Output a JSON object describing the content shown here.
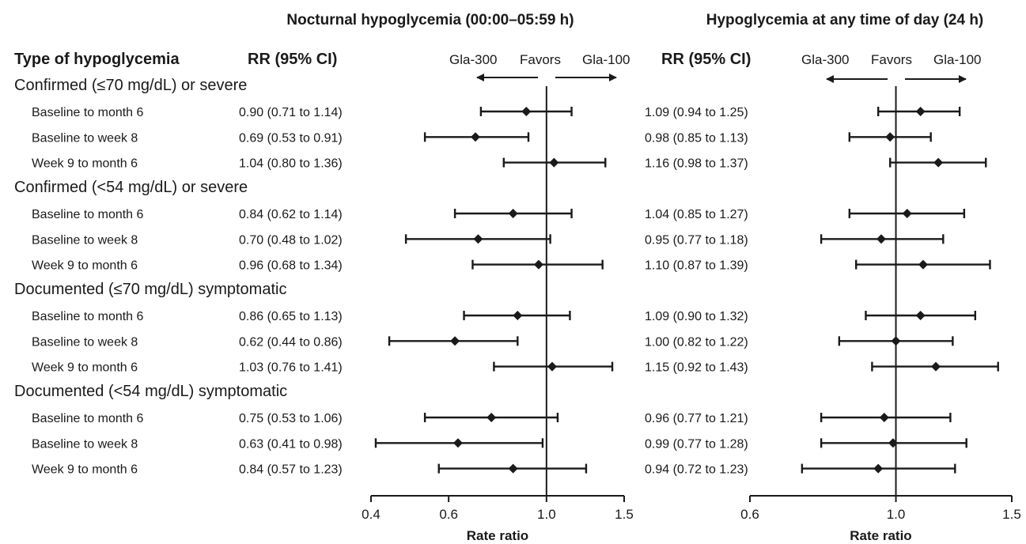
{
  "header": {
    "type_label": "Type of hypoglycemia",
    "rr_label": "RR (95% CI)"
  },
  "chart_data": [
    {
      "type": "forest",
      "title": "Nocturnal hypoglycemia (00:00–05:59 h)",
      "xlabel": "Rate ratio",
      "scale": "log",
      "xlim": [
        0.4,
        1.5
      ],
      "ticks": [
        0.4,
        0.6,
        1.0,
        1.5
      ],
      "tick_labels": [
        "0.4",
        "0.6",
        "1.0",
        "1.5"
      ],
      "reference": 1.0,
      "favors": {
        "left": "Gla-300",
        "middle": "Favors",
        "right": "Gla-100"
      },
      "groups": [
        {
          "label": "Confirmed (≤70 mg/dL) or severe",
          "rows": [
            {
              "label": "Baseline to month 6",
              "rr": 0.9,
              "lo": 0.71,
              "hi": 1.14,
              "text": "0.90 (0.71 to 1.14)"
            },
            {
              "label": "Baseline to week 8",
              "rr": 0.69,
              "lo": 0.53,
              "hi": 0.91,
              "text": "0.69 (0.53 to 0.91)"
            },
            {
              "label": "Week 9 to month 6",
              "rr": 1.04,
              "lo": 0.8,
              "hi": 1.36,
              "text": "1.04 (0.80 to 1.36)"
            }
          ]
        },
        {
          "label": "Confirmed (<54 mg/dL) or severe",
          "rows": [
            {
              "label": "Baseline to month 6",
              "rr": 0.84,
              "lo": 0.62,
              "hi": 1.14,
              "text": "0.84 (0.62 to 1.14)"
            },
            {
              "label": "Baseline to week 8",
              "rr": 0.7,
              "lo": 0.48,
              "hi": 1.02,
              "text": "0.70 (0.48 to 1.02)"
            },
            {
              "label": "Week 9 to month 6",
              "rr": 0.96,
              "lo": 0.68,
              "hi": 1.34,
              "text": "0.96 (0.68 to 1.34)"
            }
          ]
        },
        {
          "label": "Documented (≤70 mg/dL) symptomatic",
          "rows": [
            {
              "label": "Baseline to month 6",
              "rr": 0.86,
              "lo": 0.65,
              "hi": 1.13,
              "text": "0.86 (0.65 to 1.13)"
            },
            {
              "label": "Baseline to week 8",
              "rr": 0.62,
              "lo": 0.44,
              "hi": 0.86,
              "text": "0.62 (0.44 to 0.86)"
            },
            {
              "label": "Week 9 to month 6",
              "rr": 1.03,
              "lo": 0.76,
              "hi": 1.41,
              "text": "1.03 (0.76 to 1.41)"
            }
          ]
        },
        {
          "label": "Documented (<54 mg/dL) symptomatic",
          "rows": [
            {
              "label": "Baseline to month 6",
              "rr": 0.75,
              "lo": 0.53,
              "hi": 1.06,
              "text": "0.75 (0.53 to 1.06)"
            },
            {
              "label": "Baseline to week 8",
              "rr": 0.63,
              "lo": 0.41,
              "hi": 0.98,
              "text": "0.63 (0.41 to 0.98)"
            },
            {
              "label": "Week 9 to month 6",
              "rr": 0.84,
              "lo": 0.57,
              "hi": 1.23,
              "text": "0.84 (0.57 to 1.23)"
            }
          ]
        }
      ]
    },
    {
      "type": "forest",
      "title": "Hypoglycemia at any time of day (24 h)",
      "xlabel": "Rate ratio",
      "scale": "log",
      "xlim": [
        0.6,
        1.5
      ],
      "ticks": [
        0.6,
        1.0,
        1.5
      ],
      "tick_labels": [
        "0.6",
        "1.0",
        "1.5"
      ],
      "reference": 1.0,
      "favors": {
        "left": "Gla-300",
        "middle": "Favors",
        "right": "Gla-100"
      },
      "groups": [
        {
          "label": "Confirmed (≤70 mg/dL) or severe",
          "rows": [
            {
              "label": "Baseline to month 6",
              "rr": 1.09,
              "lo": 0.94,
              "hi": 1.25,
              "text": "1.09 (0.94 to 1.25)"
            },
            {
              "label": "Baseline to week 8",
              "rr": 0.98,
              "lo": 0.85,
              "hi": 1.13,
              "text": "0.98 (0.85 to 1.13)"
            },
            {
              "label": "Week 9 to month 6",
              "rr": 1.16,
              "lo": 0.98,
              "hi": 1.37,
              "text": "1.16 (0.98 to 1.37)"
            }
          ]
        },
        {
          "label": "Confirmed (<54 mg/dL) or severe",
          "rows": [
            {
              "label": "Baseline to month 6",
              "rr": 1.04,
              "lo": 0.85,
              "hi": 1.27,
              "text": "1.04 (0.85 to 1.27)"
            },
            {
              "label": "Baseline to week 8",
              "rr": 0.95,
              "lo": 0.77,
              "hi": 1.18,
              "text": "0.95 (0.77 to 1.18)"
            },
            {
              "label": "Week 9 to month 6",
              "rr": 1.1,
              "lo": 0.87,
              "hi": 1.39,
              "text": "1.10 (0.87 to 1.39)"
            }
          ]
        },
        {
          "label": "Documented (≤70 mg/dL) symptomatic",
          "rows": [
            {
              "label": "Baseline to month 6",
              "rr": 1.09,
              "lo": 0.9,
              "hi": 1.32,
              "text": "1.09 (0.90 to 1.32)"
            },
            {
              "label": "Baseline to week 8",
              "rr": 1.0,
              "lo": 0.82,
              "hi": 1.22,
              "text": "1.00 (0.82 to 1.22)"
            },
            {
              "label": "Week 9 to month 6",
              "rr": 1.15,
              "lo": 0.92,
              "hi": 1.43,
              "text": "1.15 (0.92 to 1.43)"
            }
          ]
        },
        {
          "label": "Documented (<54 mg/dL) symptomatic",
          "rows": [
            {
              "label": "Baseline to month 6",
              "rr": 0.96,
              "lo": 0.77,
              "hi": 1.21,
              "text": "0.96 (0.77 to 1.21)"
            },
            {
              "label": "Baseline to week 8",
              "rr": 0.99,
              "lo": 0.77,
              "hi": 1.28,
              "text": "0.99 (0.77 to 1.28)"
            },
            {
              "label": "Week 9 to month 6",
              "rr": 0.94,
              "lo": 0.72,
              "hi": 1.23,
              "text": "0.94 (0.72 to 1.23)"
            }
          ]
        }
      ]
    }
  ]
}
